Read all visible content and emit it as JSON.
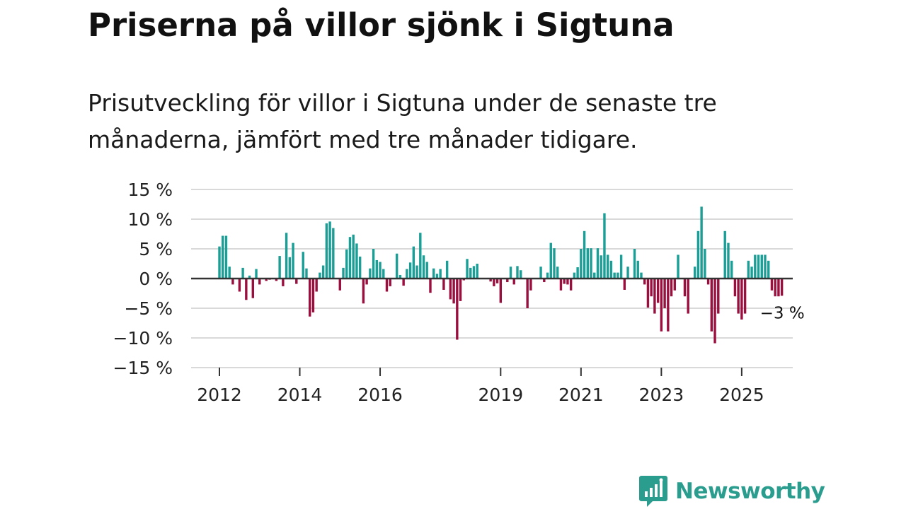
{
  "title": "Priserna på villor sjönk i Sigtuna",
  "subtitle": "Prisutveckling för villor i Sigtuna under de senaste tre månaderna, jämfört med tre månader tidigare.",
  "brand": {
    "name": "Newsworthy",
    "icon": "newsworthy-logo-icon"
  },
  "colors": {
    "positive": "#1a9e96",
    "negative": "#9b0f3f",
    "grid": "#d9d9d9",
    "axis": "#333333",
    "brand": "#2a9d8f"
  },
  "chart_data": {
    "type": "bar",
    "title": "Priserna på villor sjönk i Sigtuna",
    "ylim": [
      -15,
      15
    ],
    "yticks": [
      15,
      10,
      5,
      0,
      -5,
      -10,
      -15
    ],
    "ytick_labels": [
      "15 %",
      "10 %",
      "5 %",
      "0 %",
      "−5 %",
      "−10 %",
      "−15 %"
    ],
    "xticks": [
      {
        "label": "2012",
        "index": 0
      },
      {
        "label": "2014",
        "index": 24
      },
      {
        "label": "2016",
        "index": 48
      },
      {
        "label": "2019",
        "index": 84
      },
      {
        "label": "2021",
        "index": 108
      },
      {
        "label": "2023",
        "index": 132
      },
      {
        "label": "2025",
        "index": 156
      }
    ],
    "start_period": "2012-01",
    "last_value_label": "−3 %",
    "values": [
      5.4,
      7.2,
      7.2,
      2.0,
      -1.0,
      0.0,
      -2.2,
      1.8,
      -3.6,
      0.5,
      -3.3,
      1.6,
      -1.0,
      0.0,
      -0.4,
      -0.2,
      0.0,
      -0.4,
      3.8,
      -1.3,
      7.7,
      3.6,
      6.0,
      -0.9,
      0.0,
      4.5,
      1.7,
      -6.4,
      -5.7,
      -2.2,
      1.0,
      2.2,
      9.3,
      9.6,
      8.5,
      0.0,
      -2.0,
      1.8,
      4.9,
      7.0,
      7.4,
      5.9,
      3.7,
      -4.2,
      -1.0,
      1.7,
      5.0,
      3.1,
      2.8,
      1.6,
      -2.2,
      -1.3,
      0.0,
      4.2,
      0.6,
      -1.2,
      1.6,
      2.7,
      5.4,
      2.2,
      7.7,
      3.9,
      2.8,
      -2.4,
      1.7,
      0.8,
      1.6,
      -1.9,
      3.0,
      -3.5,
      -4.2,
      -10.3,
      -3.8,
      -0.3,
      3.3,
      1.8,
      2.1,
      2.5,
      0.0,
      0.0,
      0.0,
      -0.5,
      -1.3,
      -0.8,
      -4.1,
      0.0,
      -0.6,
      2.0,
      -1.0,
      2.1,
      1.4,
      0.0,
      -5.0,
      -2.0,
      0.0,
      0.0,
      2.0,
      -0.6,
      1.0,
      6.0,
      5.1,
      2.0,
      -2.0,
      -0.9,
      -1.0,
      -2.0,
      1.0,
      1.9,
      5.0,
      8.0,
      5.1,
      5.1,
      1.0,
      5.1,
      3.9,
      11.0,
      4.0,
      3.0,
      1.0,
      1.0,
      4.0,
      -1.9,
      2.0,
      0.0,
      5.0,
      3.0,
      1.0,
      -1.0,
      -4.9,
      -3.0,
      -5.9,
      -4.1,
      -8.9,
      -5.0,
      -8.9,
      -3.0,
      -2.0,
      4.0,
      0.0,
      -3.0,
      -5.9,
      0.0,
      2.0,
      8.0,
      12.1,
      5.0,
      -1.0,
      -8.9,
      -10.9,
      -5.9,
      0.0,
      8.0,
      6.0,
      3.0,
      -3.0,
      -5.9,
      -6.9,
      -5.9,
      3.0,
      2.0,
      4.0,
      4.0,
      4.0,
      4.0,
      3.0,
      -2.0,
      -3.0,
      -3.0,
      -2.9
    ]
  }
}
